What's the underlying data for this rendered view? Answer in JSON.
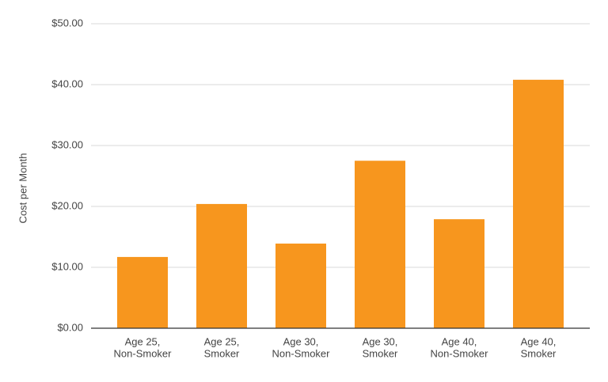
{
  "chart_data": {
    "type": "bar",
    "y_label": "Cost per Month",
    "categories": [
      [
        "Age 25,",
        "Non-Smoker"
      ],
      [
        "Age 25,",
        "Smoker"
      ],
      [
        "Age 30,",
        "Non-Smoker"
      ],
      [
        "Age 30,",
        "Smoker"
      ],
      [
        "Age 40,",
        "Non-Smoker"
      ],
      [
        "Age 40,",
        "Smoker"
      ]
    ],
    "values": [
      11.7,
      20.4,
      13.9,
      27.5,
      17.9,
      40.8
    ],
    "color": "#f7961e",
    "ylim": [
      0,
      50
    ],
    "yticks": [
      {
        "value": 0,
        "label": "$0.00"
      },
      {
        "value": 10,
        "label": "$10.00"
      },
      {
        "value": 20,
        "label": "$20.00"
      },
      {
        "value": 30,
        "label": "$30.00"
      },
      {
        "value": 40,
        "label": "$40.00"
      },
      {
        "value": 50,
        "label": "$50.00"
      }
    ],
    "grid": true
  }
}
